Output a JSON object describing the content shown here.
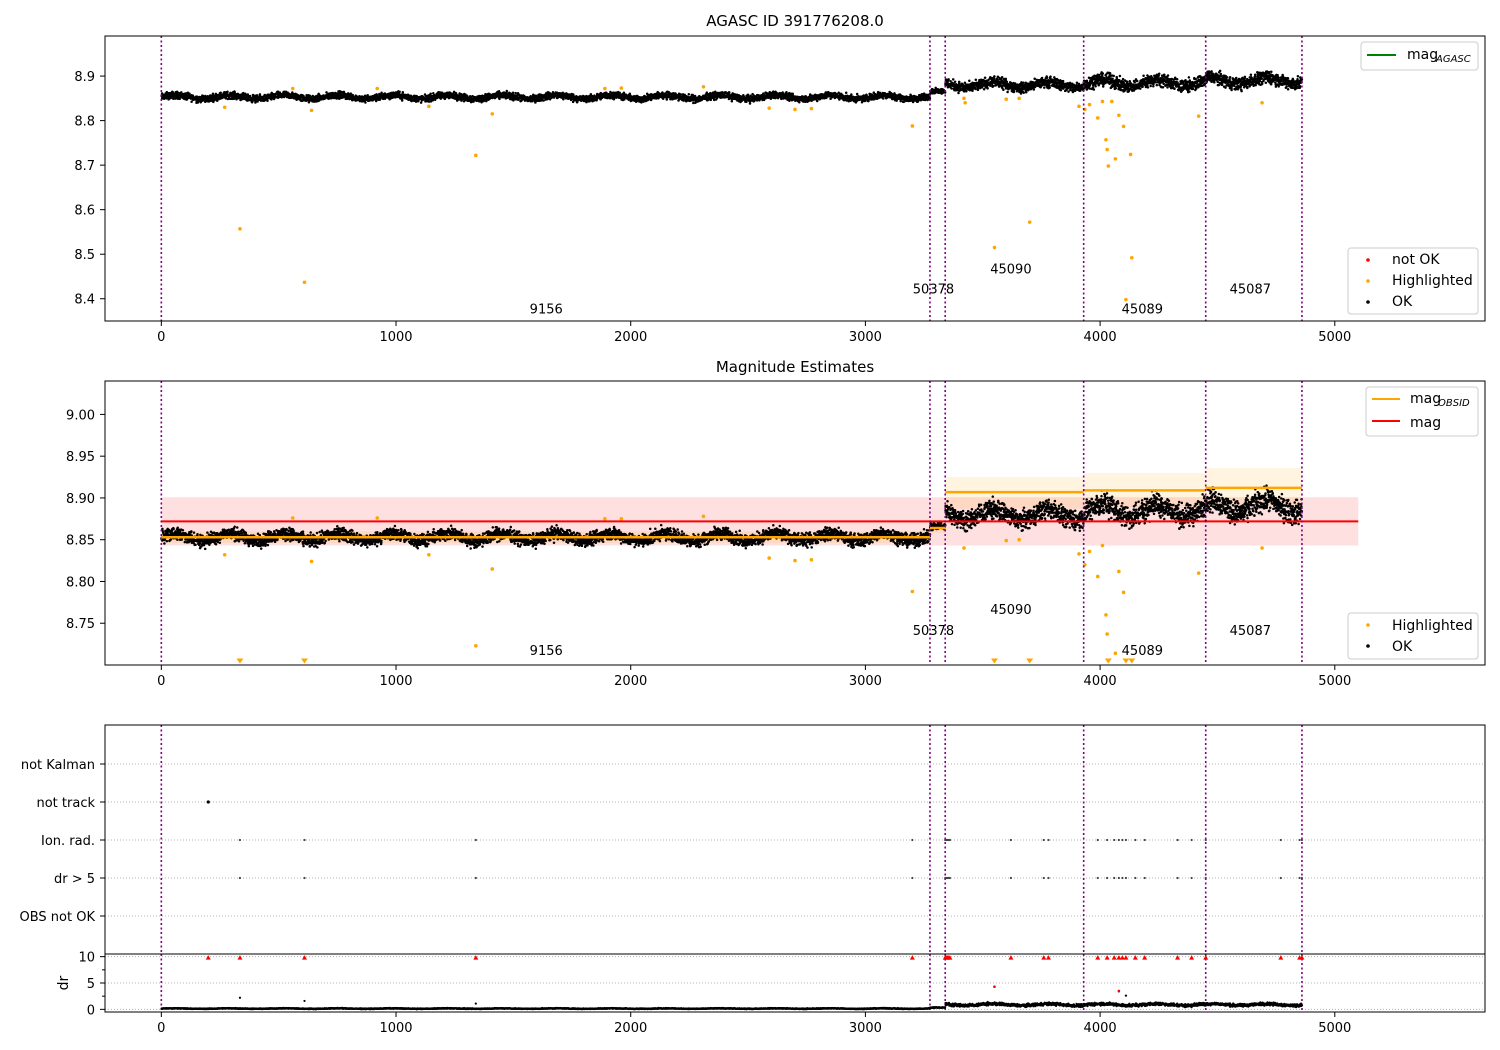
{
  "chart_data": [
    {
      "type": "scatter",
      "title": "AGASC ID 391776208.0",
      "xlim": [
        -240,
        5640
      ],
      "ylim": [
        8.35,
        8.99
      ],
      "x_ticks": [
        0,
        1000,
        2000,
        3000,
        4000,
        5000
      ],
      "y_ticks": [
        8.4,
        8.5,
        8.6,
        8.7,
        8.8,
        8.9
      ],
      "y_tick_labels": [
        "8.4",
        "8.5",
        "8.6",
        "8.7",
        "8.8",
        "8.9"
      ],
      "grid": false,
      "legend_top": {
        "position": "top-right",
        "entries": [
          {
            "label": "mag",
            "sub": "AGASC",
            "color": "#008000"
          }
        ]
      },
      "legend_bottom": {
        "position": "bottom-right",
        "entries": [
          {
            "label": "not OK",
            "color": "#ff0000"
          },
          {
            "label": "Highlighted",
            "color": "#ffa500"
          },
          {
            "label": "OK",
            "color": "#000000"
          }
        ]
      },
      "obsid_boundaries": [
        0,
        3275,
        3340,
        3930,
        4450,
        4860
      ],
      "obsid_labels": [
        {
          "text": "9156",
          "x": 1640,
          "y": 8.367
        },
        {
          "text": "50378",
          "x": 3290,
          "y": 8.412
        },
        {
          "text": "45090",
          "x": 3620,
          "y": 8.457
        },
        {
          "text": "45089",
          "x": 4180,
          "y": 8.367
        },
        {
          "text": "45087",
          "x": 4640,
          "y": 8.412
        }
      ],
      "ok_series": {
        "color": "#000000",
        "segments": [
          {
            "x": [
              0,
              3275
            ],
            "level": 8.853,
            "spread": 0.012
          },
          {
            "x": [
              3275,
              3340
            ],
            "level": 8.864,
            "spread": 0.008
          },
          {
            "x": [
              3340,
              3930
            ],
            "level": 8.88,
            "spread": 0.018
          },
          {
            "x": [
              3930,
              4450
            ],
            "level": 8.885,
            "spread": 0.022
          },
          {
            "x": [
              4450,
              4860
            ],
            "level": 8.89,
            "spread": 0.022
          }
        ]
      },
      "highlighted_points": [
        [
          270,
          8.83
        ],
        [
          335,
          8.557
        ],
        [
          560,
          8.872
        ],
        [
          610,
          8.437
        ],
        [
          640,
          8.823
        ],
        [
          920,
          8.872
        ],
        [
          1140,
          8.832
        ],
        [
          1340,
          8.722
        ],
        [
          1410,
          8.815
        ],
        [
          1890,
          8.872
        ],
        [
          1960,
          8.873
        ],
        [
          2310,
          8.876
        ],
        [
          2590,
          8.828
        ],
        [
          2700,
          8.825
        ],
        [
          2770,
          8.827
        ],
        [
          3200,
          8.788
        ],
        [
          3420,
          8.85
        ],
        [
          3425,
          8.84
        ],
        [
          3550,
          8.515
        ],
        [
          3600,
          8.848
        ],
        [
          3655,
          8.85
        ],
        [
          3700,
          8.572
        ],
        [
          3910,
          8.832
        ],
        [
          3935,
          8.825
        ],
        [
          3955,
          8.836
        ],
        [
          3990,
          8.806
        ],
        [
          4010,
          8.843
        ],
        [
          4025,
          8.757
        ],
        [
          4030,
          8.735
        ],
        [
          4035,
          8.698
        ],
        [
          4050,
          8.843
        ],
        [
          4065,
          8.714
        ],
        [
          4080,
          8.812
        ],
        [
          4100,
          8.787
        ],
        [
          4110,
          8.398
        ],
        [
          4130,
          8.724
        ],
        [
          4135,
          8.492
        ],
        [
          4420,
          8.81
        ],
        [
          4690,
          8.84
        ]
      ]
    },
    {
      "type": "scatter",
      "title": "Magnitude Estimates",
      "xlim": [
        -240,
        5640
      ],
      "ylim": [
        8.7,
        9.04
      ],
      "x_ticks": [
        0,
        1000,
        2000,
        3000,
        4000,
        5000
      ],
      "y_ticks": [
        8.75,
        8.8,
        8.85,
        8.9,
        8.95,
        9.0
      ],
      "y_tick_labels": [
        "8.75",
        "8.80",
        "8.85",
        "8.90",
        "8.95",
        "9.00"
      ],
      "grid": false,
      "legend_top": {
        "position": "top-right",
        "entries": [
          {
            "label": "mag",
            "sub": "OBSID",
            "color": "#ffa500"
          },
          {
            "label": "mag",
            "sub": "",
            "color": "#ff0000"
          }
        ]
      },
      "legend_bottom": {
        "position": "bottom-right",
        "entries": [
          {
            "label": "Highlighted",
            "color": "#ffa500"
          },
          {
            "label": "OK",
            "color": "#000000"
          }
        ]
      },
      "mag_line": {
        "value": 8.872,
        "band": [
          8.843,
          8.901
        ],
        "x": [
          0,
          5100
        ],
        "color": "#ff0000"
      },
      "obsid_mags": [
        {
          "x": [
            0,
            3275
          ],
          "mag": 8.853,
          "band": [
            8.846,
            8.86
          ]
        },
        {
          "x": [
            3275,
            3340
          ],
          "mag": 8.864,
          "band": [
            8.858,
            8.87
          ]
        },
        {
          "x": [
            3340,
            3930
          ],
          "mag": 8.907,
          "band": [
            8.887,
            8.925
          ]
        },
        {
          "x": [
            3930,
            4450
          ],
          "mag": 8.909,
          "band": [
            8.888,
            8.93
          ]
        },
        {
          "x": [
            4450,
            4860
          ],
          "mag": 8.912,
          "band": [
            8.89,
            8.936
          ]
        }
      ],
      "ok_series": {
        "color": "#000000",
        "segments": [
          {
            "x": [
              0,
              3275
            ],
            "level": 8.853,
            "spread": 0.012
          },
          {
            "x": [
              3275,
              3340
            ],
            "level": 8.864,
            "spread": 0.008
          },
          {
            "x": [
              3340,
              3930
            ],
            "level": 8.88,
            "spread": 0.018
          },
          {
            "x": [
              3930,
              4450
            ],
            "level": 8.885,
            "spread": 0.022
          },
          {
            "x": [
              4450,
              4860
            ],
            "level": 8.89,
            "spread": 0.022
          }
        ]
      },
      "highlighted_points": [
        [
          270,
          8.832
        ],
        [
          560,
          8.876
        ],
        [
          640,
          8.824
        ],
        [
          920,
          8.876
        ],
        [
          1140,
          8.832
        ],
        [
          1340,
          8.723
        ],
        [
          1410,
          8.815
        ],
        [
          1890,
          8.875
        ],
        [
          1960,
          8.875
        ],
        [
          2310,
          8.878
        ],
        [
          2590,
          8.828
        ],
        [
          2700,
          8.825
        ],
        [
          2770,
          8.826
        ],
        [
          3200,
          8.788
        ],
        [
          3420,
          8.84
        ],
        [
          3600,
          8.849
        ],
        [
          3655,
          8.85
        ],
        [
          3910,
          8.833
        ],
        [
          3935,
          8.82
        ],
        [
          3955,
          8.836
        ],
        [
          3990,
          8.806
        ],
        [
          4010,
          8.843
        ],
        [
          4025,
          8.76
        ],
        [
          4030,
          8.737
        ],
        [
          4065,
          8.714
        ],
        [
          4080,
          8.812
        ],
        [
          4100,
          8.787
        ],
        [
          4420,
          8.81
        ],
        [
          4690,
          8.84
        ]
      ],
      "clipped_markers_x": [
        335,
        610,
        3550,
        3700,
        4035,
        4110,
        4135
      ],
      "obsid_labels": [
        {
          "text": "9156",
          "x": 1640,
          "y": 8.712
        },
        {
          "text": "50378",
          "x": 3290,
          "y": 8.736
        },
        {
          "text": "45090",
          "x": 3620,
          "y": 8.761
        },
        {
          "text": "45089",
          "x": 4180,
          "y": 8.712
        },
        {
          "text": "45087",
          "x": 4640,
          "y": 8.736
        }
      ]
    },
    {
      "type": "scatter",
      "xlim": [
        -240,
        5640
      ],
      "y_categories": [
        "not Kalman",
        "not track",
        "Ion. rad.",
        "dr > 5",
        "OBS not OK"
      ],
      "grid": true,
      "flags": {
        "not track": [
          200
        ],
        "Ion. rad.": [
          335,
          610,
          1340,
          3200,
          3340,
          3345,
          3350,
          3355,
          3360,
          3620,
          3760,
          3780,
          3990,
          4030,
          4060,
          4080,
          4095,
          4110,
          4150,
          4190,
          4330,
          4390,
          4450,
          4770,
          4850,
          4860
        ],
        "dr > 5": [
          335,
          610,
          1340,
          3200,
          3340,
          3345,
          3350,
          3355,
          3360,
          3620,
          3760,
          3780,
          3990,
          4030,
          4060,
          4080,
          4095,
          4110,
          4150,
          4190,
          4330,
          4390,
          4450,
          4770,
          4850,
          4860
        ]
      }
    },
    {
      "type": "scatter",
      "ylabel": "dr",
      "xlim": [
        -240,
        5640
      ],
      "ylim": [
        -0.5,
        10.5
      ],
      "x_ticks": [
        0,
        1000,
        2000,
        3000,
        4000,
        5000
      ],
      "y_ticks": [
        0,
        5,
        10
      ],
      "y_tick_labels": [
        "0",
        "5",
        "10"
      ],
      "grid": true,
      "ok_series": {
        "color": "#000000",
        "segments": [
          {
            "x": [
              0,
              3275
            ],
            "level": 0.15,
            "spread": 0.12
          },
          {
            "x": [
              3275,
              3340
            ],
            "level": 0.3,
            "spread": 0.15
          },
          {
            "x": [
              3340,
              4860
            ],
            "level": 0.9,
            "spread": 0.45
          }
        ]
      },
      "outliers": [
        [
          335,
          2.2
        ],
        [
          610,
          1.6
        ],
        [
          1340,
          1.1
        ],
        [
          4110,
          2.6
        ],
        [
          3550,
          4.3
        ],
        [
          4080,
          3.4
        ]
      ],
      "not_ok_points": [
        [
          3550,
          4.3
        ],
        [
          4080,
          3.5
        ]
      ],
      "clipped_markers_x": [
        200,
        335,
        610,
        1340,
        3200,
        3340,
        3345,
        3350,
        3355,
        3360,
        3620,
        3760,
        3780,
        3990,
        4030,
        4060,
        4080,
        4095,
        4110,
        4150,
        4190,
        4330,
        4390,
        4450,
        4770,
        4850,
        4860
      ],
      "obsid_boundaries": [
        0,
        3275,
        3340,
        3930,
        4450,
        4860
      ]
    }
  ]
}
